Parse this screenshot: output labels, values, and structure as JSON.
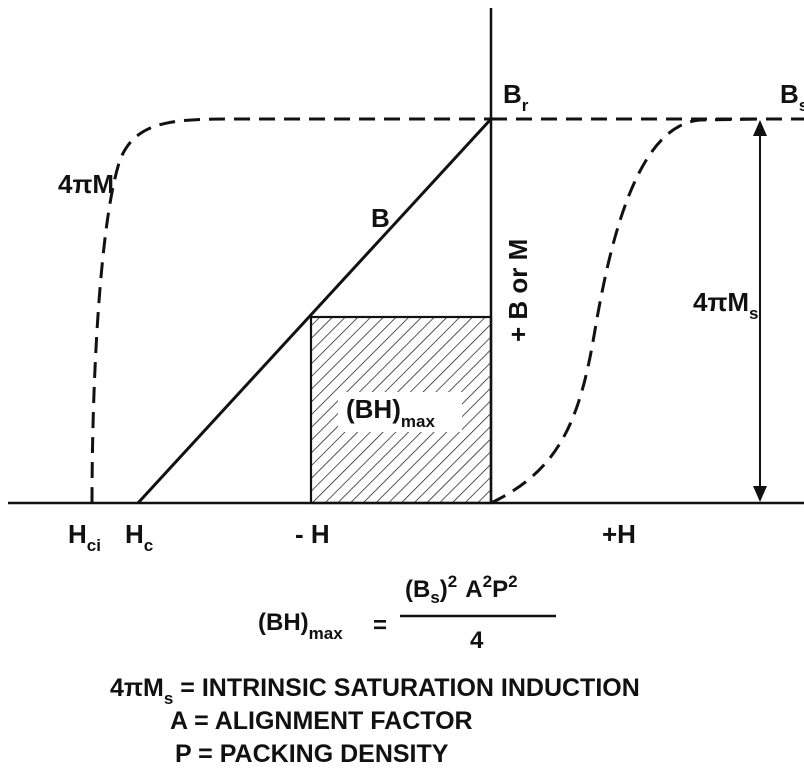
{
  "diagram": {
    "labels": {
      "br_main": "B",
      "br_sub": "r",
      "bs_main": "B",
      "bs_sub": "s",
      "four_pi_m": "4πM",
      "b_line": "B",
      "vertical_axis": "+ B or M",
      "four_pi_ms_main": "4πM",
      "four_pi_ms_sub": "s",
      "bhmax_main": "(BH)",
      "bhmax_sub": "max",
      "hci_main": "H",
      "hci_sub": "ci",
      "hc_main": "H",
      "hc_sub": "c",
      "neg_h": "- H",
      "pos_h": "+H"
    },
    "formula": {
      "lhs_main": "(BH)",
      "lhs_sub": "max",
      "equals": "=",
      "num_bs_open": "(B",
      "num_bs_sub": "s",
      "num_bs_close": ")",
      "num_exp2": "2",
      "num_a": "A",
      "num_a_exp": "2",
      "num_p": "P",
      "num_p_exp": "2",
      "denominator": "4"
    },
    "definitions": [
      {
        "sym_main": "4πM",
        "sym_sub": "s",
        "text": " = INTRINSIC SATURATION INDUCTION"
      },
      {
        "sym_main": "A",
        "sym_sub": "",
        "text": " = ALIGNMENT FACTOR"
      },
      {
        "sym_main": "P",
        "sym_sub": "",
        "text": " = PACKING DENSITY"
      }
    ],
    "colors": {
      "ink": "#111111",
      "background": "#ffffff"
    }
  }
}
